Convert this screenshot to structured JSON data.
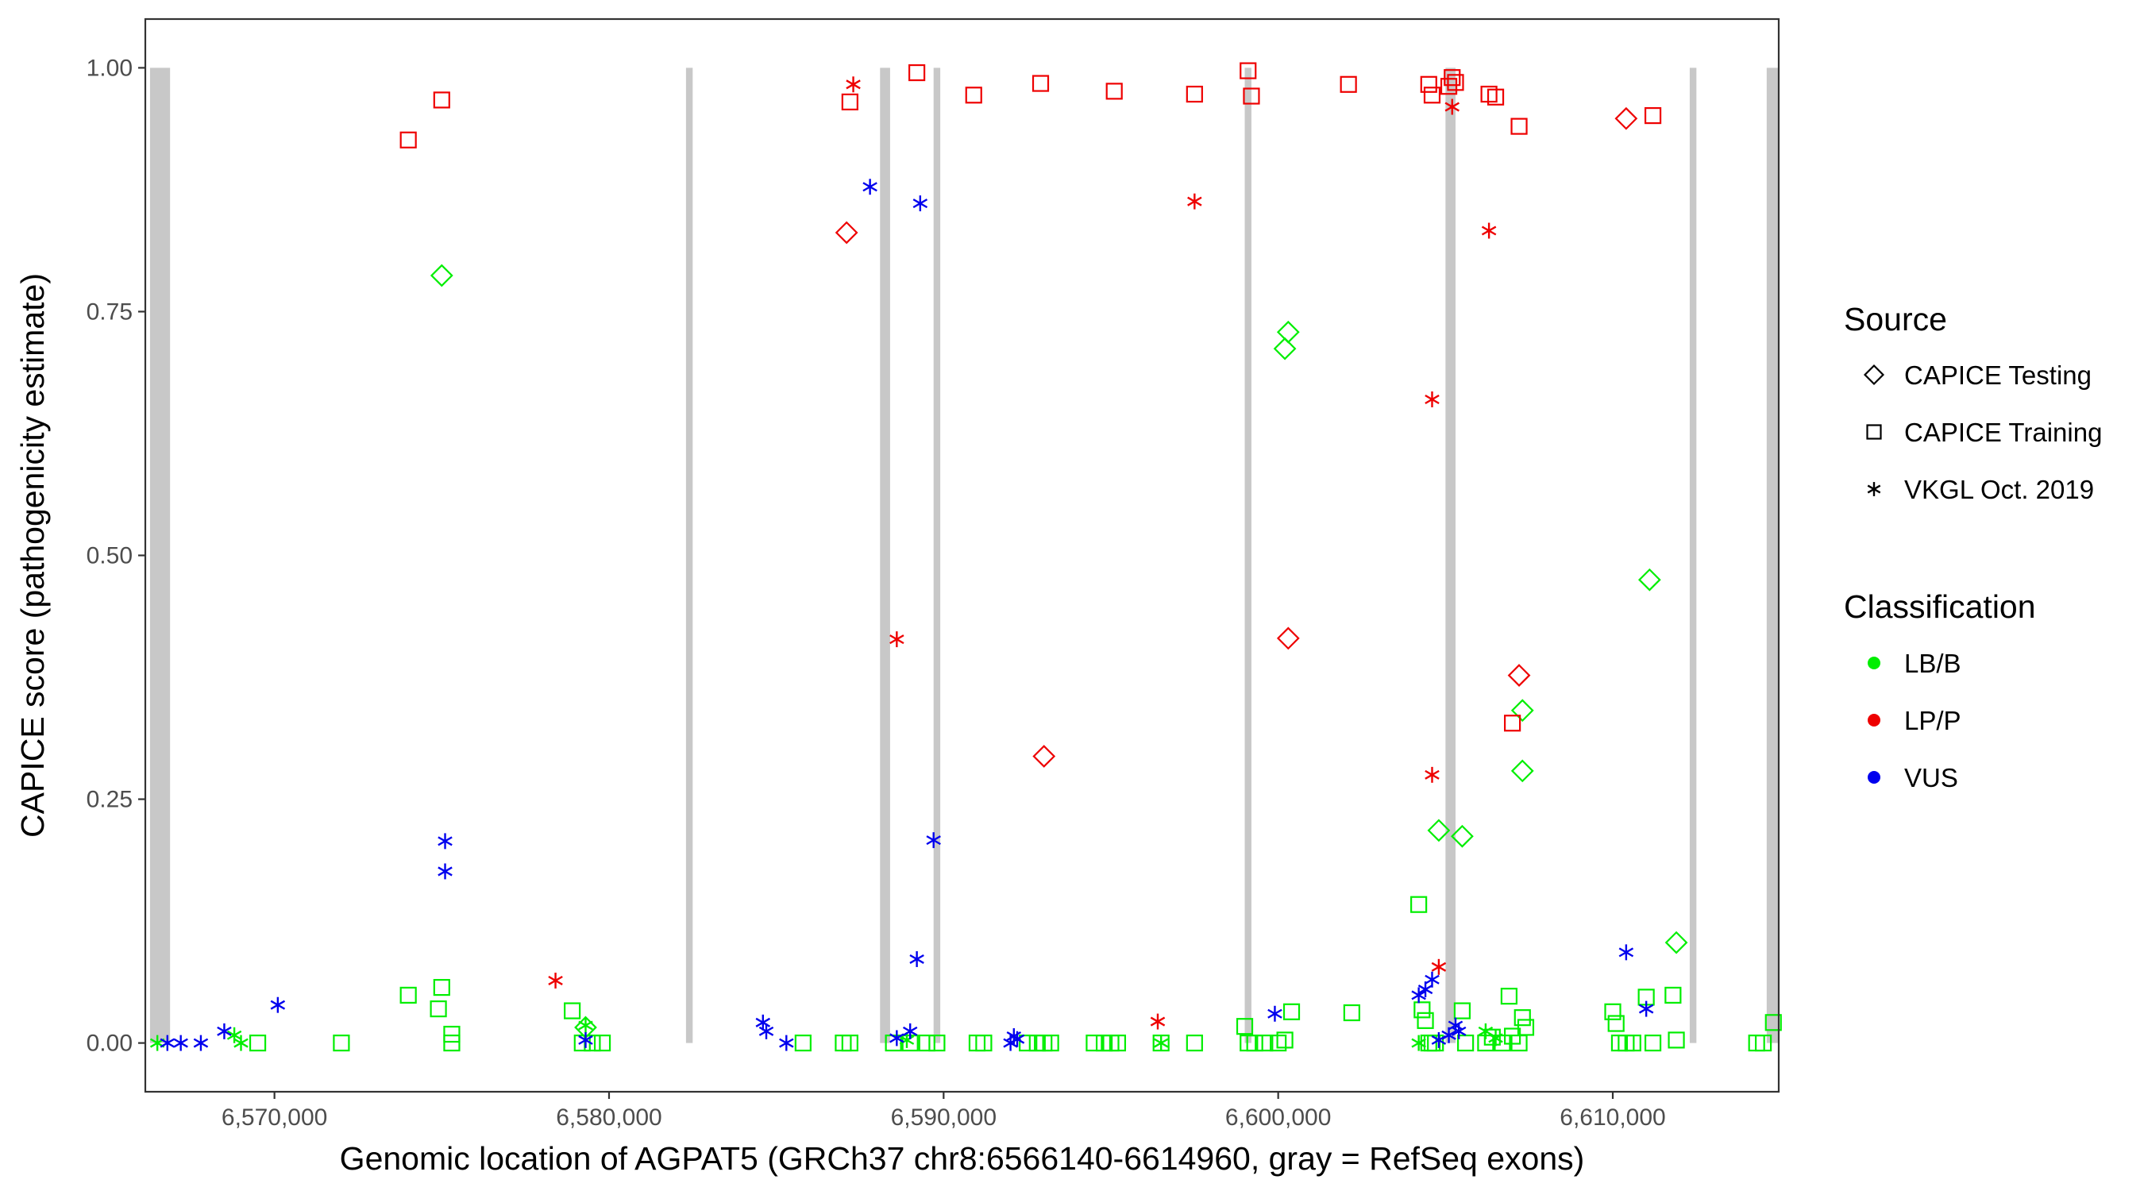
{
  "chart_data": {
    "type": "scatter",
    "xlabel": "Genomic location of AGPAT5 (GRCh37 chr8:6566140-6614960, gray = RefSeq exons)",
    "ylabel": "CAPICE score (pathogenicity estimate)",
    "xlim": [
      6566140,
      6614960
    ],
    "ylim": [
      -0.05,
      1.05
    ],
    "x_ticks": [
      6570000,
      6580000,
      6590000,
      6600000,
      6610000
    ],
    "x_tick_labels": [
      "6,570,000",
      "6,580,000",
      "6,590,000",
      "6,600,000",
      "6,610,000"
    ],
    "y_ticks": [
      0,
      0.25,
      0.5,
      0.75,
      1
    ],
    "y_tick_labels": [
      "0.00",
      "0.25",
      "0.50",
      "0.75",
      "1.00"
    ],
    "grid": false,
    "legend_position": "right",
    "exons": [
      {
        "start": 6566280,
        "end": 6566880
      },
      {
        "start": 6582300,
        "end": 6582500
      },
      {
        "start": 6588100,
        "end": 6588400
      },
      {
        "start": 6589700,
        "end": 6589900
      },
      {
        "start": 6599000,
        "end": 6599200
      },
      {
        "start": 6605000,
        "end": 6605300
      },
      {
        "start": 6612300,
        "end": 6612500
      },
      {
        "start": 6614600,
        "end": 6614960
      }
    ],
    "legend": {
      "source_title": "Source",
      "source_items": [
        {
          "label": "CAPICE Testing",
          "shape": "diamond"
        },
        {
          "label": "CAPICE Training",
          "shape": "square"
        },
        {
          "label": "VKGL Oct. 2019",
          "shape": "asterisk"
        }
      ],
      "class_title": "Classification",
      "class_items": [
        {
          "label": "LB/B",
          "color": "#00ee00"
        },
        {
          "label": "LP/P",
          "color": "#ee0000"
        },
        {
          "label": "VUS",
          "color": "#0000ee"
        }
      ]
    },
    "series": [
      {
        "source": "CAPICE Testing",
        "classification": "LB/B",
        "x": [
          6575000,
          6579300,
          6600200,
          6600300,
          6604800,
          6605500,
          6607300,
          6607300,
          6611100,
          6611900
        ],
        "y": [
          0.787,
          0.016,
          0.712,
          0.729,
          0.218,
          0.212,
          0.341,
          0.279,
          0.475,
          0.103
        ]
      },
      {
        "source": "CAPICE Testing",
        "classification": "LP/P",
        "x": [
          6587100,
          6593000,
          6600300,
          6607200,
          6610400
        ],
        "y": [
          0.831,
          0.294,
          0.415,
          0.377,
          0.948
        ]
      },
      {
        "source": "CAPICE Training",
        "classification": "LB/B",
        "x": [
          6574000,
          6574900,
          6575000,
          6575300,
          6575300,
          6578900,
          6579200,
          6579500,
          6579800,
          6569500,
          6572000,
          6585800,
          6587000,
          6587200,
          6588500,
          6589000,
          6589500,
          6589800,
          6591000,
          6591200,
          6592500,
          6592800,
          6593000,
          6593200,
          6594500,
          6594800,
          6595000,
          6595200,
          6596500,
          6597500,
          6599000,
          6599100,
          6599300,
          6599600,
          6600000,
          6600200,
          6600400,
          6602200,
          6604200,
          6604300,
          6604400,
          6604500,
          6604600,
          6604700,
          6605500,
          6605600,
          6606200,
          6606400,
          6606700,
          6606900,
          6607000,
          6607200,
          6607300,
          6607400,
          6610000,
          6610100,
          6610200,
          6610400,
          6610600,
          6611000,
          6611200,
          6611800,
          6611900,
          6614300,
          6614500,
          6614800
        ],
        "y": [
          0.049,
          0.035,
          0.057,
          0.009,
          0.0,
          0.033,
          0.0,
          0.0,
          0.0,
          0.0,
          0.0,
          0.0,
          0.0,
          0.0,
          0.0,
          0.0,
          0.0,
          0.0,
          0.0,
          0.0,
          0.0,
          0.0,
          0.0,
          0.0,
          0.0,
          0.0,
          0.0,
          0.0,
          0.0,
          0.0,
          0.017,
          0.0,
          0.0,
          0.0,
          0.0,
          0.003,
          0.032,
          0.031,
          0.142,
          0.034,
          0.023,
          0.0,
          0.0,
          0.0,
          0.033,
          0.0,
          0.0,
          0.006,
          0.0,
          0.048,
          0.007,
          0.0,
          0.026,
          0.016,
          0.032,
          0.02,
          0.0,
          0.0,
          0.0,
          0.047,
          0.0,
          0.049,
          0.003,
          0.0,
          0.0,
          0.021
        ]
      },
      {
        "source": "CAPICE Training",
        "classification": "LP/P",
        "x": [
          6574000,
          6575000,
          6587200,
          6589200,
          6590900,
          6592900,
          6595100,
          6597500,
          6599100,
          6599200,
          6602100,
          6604500,
          6604600,
          6605100,
          6605200,
          6605300,
          6606300,
          6606500,
          6607200,
          6607000,
          6611200
        ],
        "y": [
          0.926,
          0.967,
          0.965,
          0.995,
          0.972,
          0.984,
          0.976,
          0.973,
          0.997,
          0.971,
          0.983,
          0.983,
          0.972,
          0.981,
          0.99,
          0.985,
          0.973,
          0.97,
          0.94,
          0.328,
          0.951
        ]
      },
      {
        "source": "VKGL Oct. 2019",
        "classification": "LB/B",
        "x": [
          6566500,
          6568800,
          6569000,
          6579300,
          6588900,
          6596500,
          6604200,
          6606200,
          6606500
        ],
        "y": [
          0.0,
          0.008,
          0.0,
          0.018,
          0.003,
          0.0,
          0.0,
          0.012,
          0.005
        ]
      },
      {
        "source": "VKGL Oct. 2019",
        "classification": "LP/P",
        "x": [
          6578400,
          6587300,
          6588600,
          6596400,
          6597500,
          6604600,
          6604600,
          6604800,
          6605200,
          6606300
        ],
        "y": [
          0.064,
          0.983,
          0.414,
          0.022,
          0.863,
          0.66,
          0.275,
          0.078,
          0.96,
          0.833
        ]
      },
      {
        "source": "VKGL Oct. 2019",
        "classification": "VUS",
        "x": [
          6566800,
          6567200,
          6567800,
          6568500,
          6570100,
          6575100,
          6575100,
          6579300,
          6584600,
          6584700,
          6585300,
          6587800,
          6588600,
          6589000,
          6589200,
          6589300,
          6589700,
          6592000,
          6592100,
          6592200,
          6599900,
          6604200,
          6604400,
          6604600,
          6604800,
          6605100,
          6605300,
          6605400,
          6610400,
          6611000
        ],
        "y": [
          0.0,
          0.0,
          0.0,
          0.012,
          0.039,
          0.207,
          0.176,
          0.003,
          0.021,
          0.012,
          0.0,
          0.878,
          0.005,
          0.012,
          0.086,
          0.861,
          0.208,
          0.0,
          0.007,
          0.004,
          0.03,
          0.049,
          0.055,
          0.065,
          0.003,
          0.008,
          0.018,
          0.012,
          0.093,
          0.035
        ]
      }
    ]
  }
}
